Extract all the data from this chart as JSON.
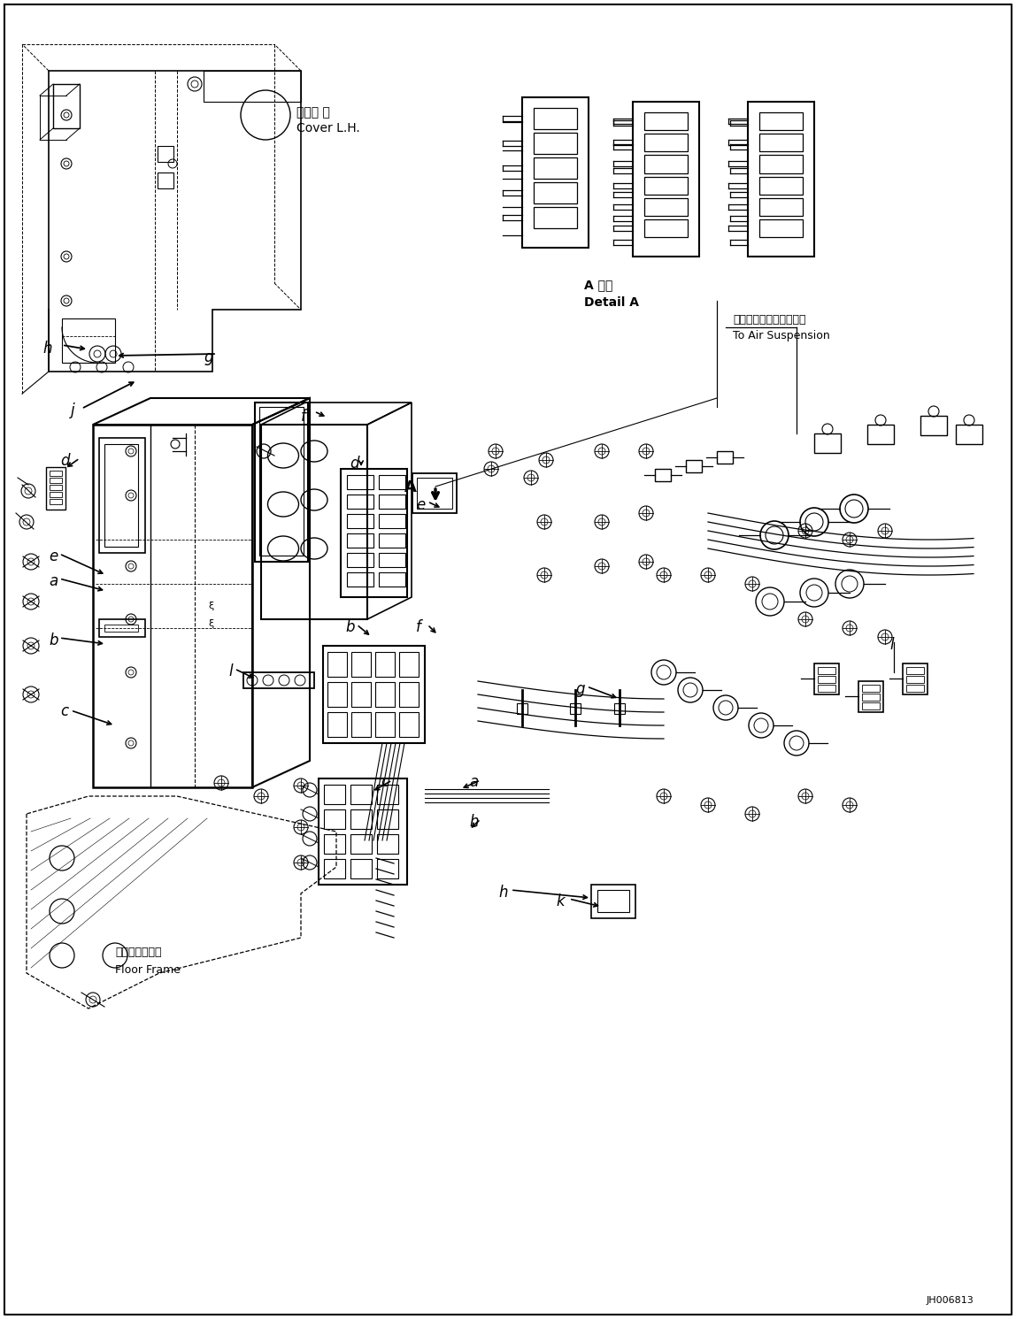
{
  "background_color": "#ffffff",
  "fig_width": 11.48,
  "fig_height": 14.91,
  "dpi": 100,
  "annotations": {
    "cover_lh_jp": "カバー 左",
    "cover_lh_en": "Cover L.H.",
    "detail_a_jp": "A 詳細",
    "detail_a_en": "Detail A",
    "air_suspension_jp": "エアーサスペンションへ",
    "air_suspension_en": "To Air Suspension",
    "floor_frame_jp": "フロアフレーム",
    "floor_frame_en": "Floor Frame",
    "drawing_number": "JH006813"
  }
}
